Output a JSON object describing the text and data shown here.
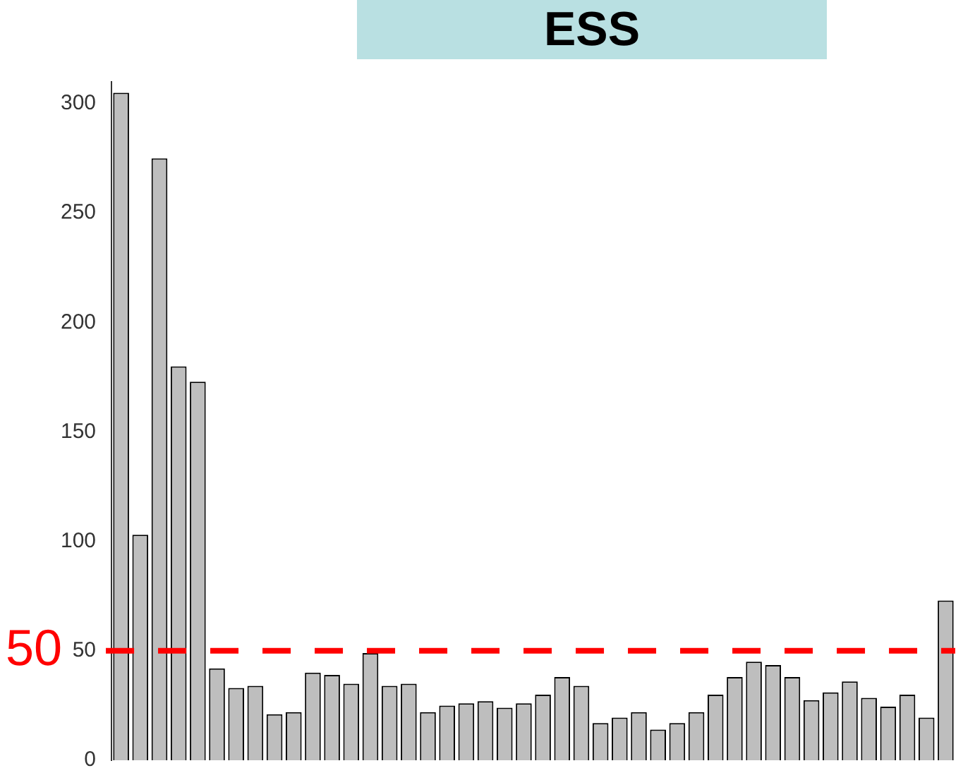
{
  "chart_data": {
    "type": "bar",
    "title": "ESS",
    "categories": [
      null,
      null,
      null,
      null,
      null,
      null,
      null,
      null,
      null,
      null,
      null,
      null,
      null,
      null,
      null,
      null,
      null,
      null,
      null,
      null,
      null,
      null,
      null,
      null,
      null,
      null,
      null,
      null,
      null,
      null,
      null,
      null,
      null,
      null,
      null,
      null,
      null,
      null,
      null,
      null,
      null,
      null,
      null,
      null
    ],
    "values": [
      305,
      103,
      275,
      180,
      173,
      42,
      33,
      34,
      21,
      22,
      40,
      39,
      35,
      49,
      34,
      35,
      22,
      25,
      26,
      27,
      24,
      26,
      30,
      38,
      34,
      17,
      19.5,
      22,
      14,
      17,
      22,
      30,
      38,
      45,
      43.5,
      38,
      27.5,
      31,
      36,
      28.5,
      24.5,
      30,
      19.5,
      73
    ],
    "color": "#bebebe",
    "ylim": [
      0,
      310
    ],
    "yticks": [
      0,
      50,
      100,
      150,
      200,
      250,
      300
    ],
    "grid": false,
    "legend": false,
    "ref_lines": [
      {
        "axis": "y",
        "value": 50,
        "label": "50",
        "color": "#ff0000",
        "line_style": "dashed"
      }
    ]
  }
}
